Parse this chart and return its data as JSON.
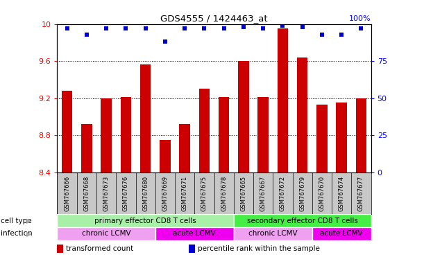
{
  "title": "GDS4555 / 1424463_at",
  "samples": [
    "GSM767666",
    "GSM767668",
    "GSM767673",
    "GSM767676",
    "GSM767680",
    "GSM767669",
    "GSM767671",
    "GSM767675",
    "GSM767678",
    "GSM767665",
    "GSM767667",
    "GSM767672",
    "GSM767679",
    "GSM767670",
    "GSM767674",
    "GSM767677"
  ],
  "bar_values": [
    9.28,
    8.92,
    9.2,
    9.21,
    9.56,
    8.75,
    8.92,
    9.3,
    9.21,
    9.6,
    9.21,
    9.95,
    9.64,
    9.13,
    9.15,
    9.2
  ],
  "dot_values": [
    97,
    93,
    97,
    97,
    97,
    88,
    97,
    97,
    97,
    98,
    97,
    99,
    98,
    93,
    93,
    97
  ],
  "ylim": [
    8.4,
    10.0
  ],
  "yticks_left": [
    8.4,
    8.8,
    9.2,
    9.6,
    10.0
  ],
  "yticks_right": [
    0,
    25,
    50,
    75
  ],
  "bar_color": "#cc0000",
  "dot_color": "#0000cc",
  "plot_bg": "#ffffff",
  "label_bg": "#c8c8c8",
  "cell_type_groups": [
    {
      "label": "primary effector CD8 T cells",
      "start": 0,
      "end": 9,
      "color": "#a8f0a8"
    },
    {
      "label": "secondary effector CD8 T cells",
      "start": 9,
      "end": 16,
      "color": "#44ee44"
    }
  ],
  "infection_groups": [
    {
      "label": "chronic LCMV",
      "start": 0,
      "end": 5,
      "color": "#f0a0f0"
    },
    {
      "label": "acute LCMV",
      "start": 5,
      "end": 9,
      "color": "#ee00ee"
    },
    {
      "label": "chronic LCMV",
      "start": 9,
      "end": 13,
      "color": "#f0a0f0"
    },
    {
      "label": "acute LCMV",
      "start": 13,
      "end": 16,
      "color": "#ee00ee"
    }
  ],
  "legend_items": [
    {
      "color": "#cc0000",
      "label": "transformed count"
    },
    {
      "color": "#0000cc",
      "label": "percentile rank within the sample"
    }
  ],
  "grid_lines": [
    8.8,
    9.2,
    9.6
  ],
  "arrow_color": "#aaaaaa"
}
